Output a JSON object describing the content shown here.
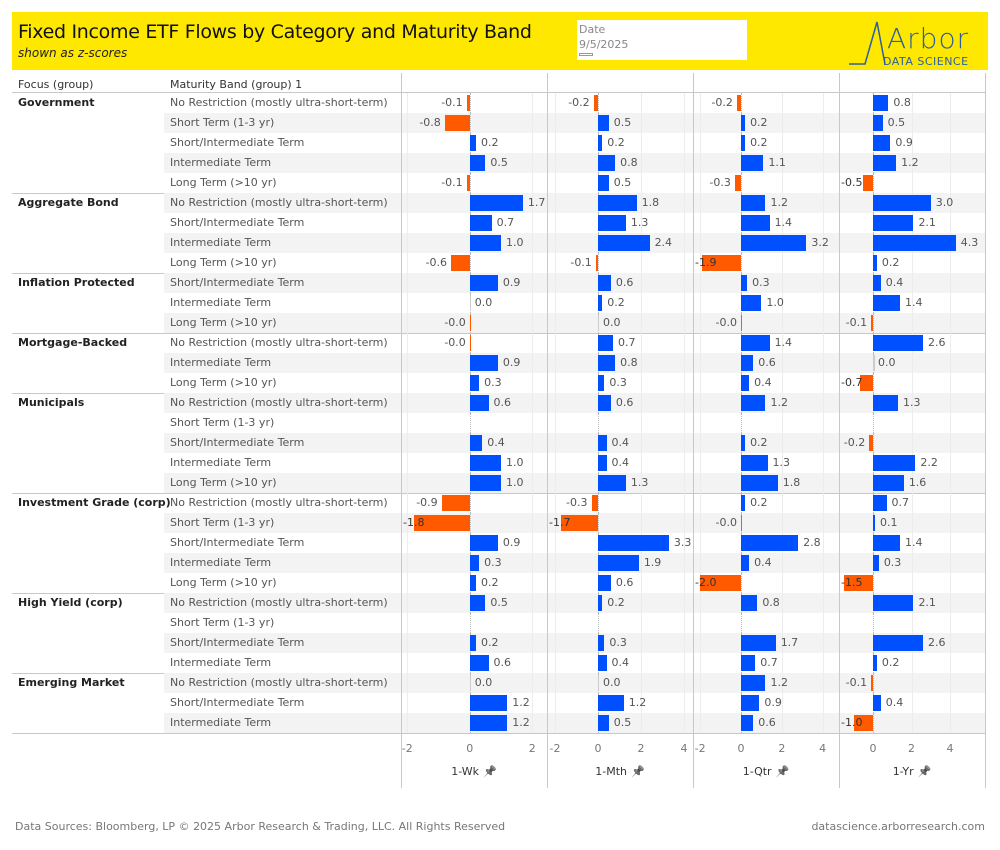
{
  "header": {
    "title": "Fixed Income ETF Flows by Category and Maturity Band",
    "subtitle": "shown as z-scores",
    "date_label": "Date",
    "date_value": "9/5/2025",
    "logo_text": "Arbor",
    "logo_sub": "DATA SCIENCE"
  },
  "columns": {
    "focus": "Focus (group)",
    "band": "Maturity Band (group) 1"
  },
  "colors": {
    "positive": "#0050ff",
    "negative": "#ff5a00"
  },
  "chart_data": {
    "type": "bar",
    "title": "Fixed Income ETF Flows by Category and Maturity Band",
    "panels": [
      {
        "name": "1-Wk",
        "ticks": [
          -2,
          0,
          2
        ],
        "xlim": [
          -2.2,
          2.47
        ]
      },
      {
        "name": "1-Mth",
        "ticks": [
          -2,
          0,
          2,
          4
        ],
        "xlim": [
          -2.37,
          4.42
        ]
      },
      {
        "name": "1-Qtr",
        "ticks": [
          -2,
          0,
          2,
          4
        ],
        "xlim": [
          -2.35,
          4.8
        ]
      },
      {
        "name": "1-Yr",
        "ticks": [
          0,
          2,
          4
        ],
        "xlim": [
          -1.77,
          5.82
        ]
      }
    ],
    "groups": [
      {
        "name": "Government",
        "rows": [
          {
            "band": "No Restriction (mostly ultra-short-term)",
            "values": [
              -0.1,
              -0.2,
              -0.2,
              0.8
            ]
          },
          {
            "band": "Short Term (1-3 yr)",
            "values": [
              -0.8,
              0.5,
              0.2,
              0.5
            ]
          },
          {
            "band": "Short/Intermediate Term",
            "values": [
              0.2,
              0.2,
              0.2,
              0.9
            ]
          },
          {
            "band": "Intermediate Term",
            "values": [
              0.5,
              0.8,
              1.1,
              1.2
            ]
          },
          {
            "band": "Long Term (>10 yr)",
            "values": [
              -0.1,
              0.5,
              -0.3,
              -0.5
            ]
          }
        ]
      },
      {
        "name": "Aggregate Bond",
        "rows": [
          {
            "band": "No Restriction (mostly ultra-short-term)",
            "values": [
              1.7,
              1.8,
              1.2,
              3.0
            ]
          },
          {
            "band": "Short/Intermediate Term",
            "values": [
              0.7,
              1.3,
              1.4,
              2.1
            ]
          },
          {
            "band": "Intermediate Term",
            "values": [
              1.0,
              2.4,
              3.2,
              4.3
            ]
          },
          {
            "band": "Long Term (>10 yr)",
            "values": [
              -0.6,
              -0.1,
              -1.9,
              0.2
            ]
          }
        ]
      },
      {
        "name": "Inflation Protected",
        "rows": [
          {
            "band": "Short/Intermediate Term",
            "values": [
              0.9,
              0.6,
              0.3,
              0.4
            ]
          },
          {
            "band": "Intermediate Term",
            "values": [
              0.0,
              0.2,
              1.0,
              1.4
            ]
          },
          {
            "band": "Long Term (>10 yr)",
            "values": [
              -0.0,
              0.0,
              -0.0,
              -0.1
            ]
          }
        ]
      },
      {
        "name": "Mortgage-Backed",
        "rows": [
          {
            "band": "No Restriction (mostly ultra-short-term)",
            "values": [
              -0.0,
              0.7,
              1.4,
              2.6
            ]
          },
          {
            "band": "Intermediate Term",
            "values": [
              0.9,
              0.8,
              0.6,
              0.0
            ]
          },
          {
            "band": "Long Term (>10 yr)",
            "values": [
              0.3,
              0.3,
              0.4,
              -0.7
            ]
          }
        ]
      },
      {
        "name": "Municipals",
        "rows": [
          {
            "band": "No Restriction (mostly ultra-short-term)",
            "values": [
              0.6,
              0.6,
              1.2,
              1.3
            ]
          },
          {
            "band": "Short Term (1-3 yr)",
            "values": [
              null,
              null,
              null,
              null
            ]
          },
          {
            "band": "Short/Intermediate Term",
            "values": [
              0.4,
              0.4,
              0.2,
              -0.2
            ]
          },
          {
            "band": "Intermediate Term",
            "values": [
              1.0,
              0.4,
              1.3,
              2.2
            ]
          },
          {
            "band": "Long Term (>10 yr)",
            "values": [
              1.0,
              1.3,
              1.8,
              1.6
            ]
          }
        ]
      },
      {
        "name": "Investment Grade (corp)",
        "rows": [
          {
            "band": "No Restriction (mostly ultra-short-term)",
            "values": [
              -0.9,
              -0.3,
              0.2,
              0.7
            ]
          },
          {
            "band": "Short Term (1-3 yr)",
            "values": [
              -1.8,
              -1.7,
              -0.0,
              0.1
            ]
          },
          {
            "band": "Short/Intermediate Term",
            "values": [
              0.9,
              3.3,
              2.8,
              1.4
            ]
          },
          {
            "band": "Intermediate Term",
            "values": [
              0.3,
              1.9,
              0.4,
              0.3
            ]
          },
          {
            "band": "Long Term (>10 yr)",
            "values": [
              0.2,
              0.6,
              -2.0,
              -1.5
            ]
          }
        ]
      },
      {
        "name": "High Yield (corp)",
        "rows": [
          {
            "band": "No Restriction (mostly ultra-short-term)",
            "values": [
              0.5,
              0.2,
              0.8,
              2.1
            ]
          },
          {
            "band": "Short Term (1-3 yr)",
            "values": [
              null,
              null,
              null,
              null
            ]
          },
          {
            "band": "Short/Intermediate Term",
            "values": [
              0.2,
              0.3,
              1.7,
              2.6
            ]
          },
          {
            "band": "Intermediate Term",
            "values": [
              0.6,
              0.4,
              0.7,
              0.2
            ]
          }
        ]
      },
      {
        "name": "Emerging Market",
        "rows": [
          {
            "band": "No Restriction (mostly ultra-short-term)",
            "values": [
              0.0,
              0.0,
              1.2,
              -0.1
            ]
          },
          {
            "band": "Short/Intermediate Term",
            "values": [
              1.2,
              1.2,
              0.9,
              0.4
            ]
          },
          {
            "band": "Intermediate Term",
            "values": [
              1.2,
              0.5,
              0.6,
              -1.0
            ]
          }
        ]
      }
    ]
  },
  "footer": {
    "left": "Data Sources: Bloomberg, LP © 2025 Arbor Research & Trading, LLC. All Rights Reserved",
    "right": "datascience.arborresearch.com"
  }
}
